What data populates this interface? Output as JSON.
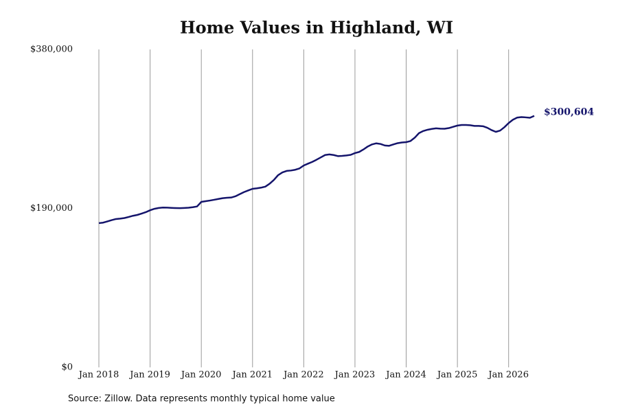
{
  "chart_data": {
    "type": "line",
    "title": "Home Values in Highland, WI",
    "source": "Source: Zillow. Data represents monthly typical home value",
    "x": [
      "2018-01",
      "2018-02",
      "2018-03",
      "2018-04",
      "2018-05",
      "2018-06",
      "2018-07",
      "2018-08",
      "2018-09",
      "2018-10",
      "2018-11",
      "2018-12",
      "2019-01",
      "2019-02",
      "2019-03",
      "2019-04",
      "2019-05",
      "2019-06",
      "2019-07",
      "2019-08",
      "2019-09",
      "2019-10",
      "2019-11",
      "2019-12",
      "2020-01",
      "2020-02",
      "2020-03",
      "2020-04",
      "2020-05",
      "2020-06",
      "2020-07",
      "2020-08",
      "2020-09",
      "2020-10",
      "2020-11",
      "2020-12",
      "2021-01",
      "2021-02",
      "2021-03",
      "2021-04",
      "2021-05",
      "2021-06",
      "2021-07",
      "2021-08",
      "2021-09",
      "2021-10",
      "2021-11",
      "2021-12",
      "2022-01",
      "2022-02",
      "2022-03",
      "2022-04",
      "2022-05",
      "2022-06",
      "2022-07",
      "2022-08",
      "2022-09",
      "2022-10",
      "2022-11",
      "2022-12",
      "2023-01",
      "2023-02",
      "2023-03",
      "2023-04",
      "2023-05",
      "2023-06",
      "2023-07",
      "2023-08",
      "2023-09",
      "2023-10",
      "2023-11",
      "2023-12",
      "2024-01",
      "2024-02",
      "2024-03",
      "2024-04",
      "2024-05",
      "2024-06",
      "2024-07",
      "2024-08",
      "2024-09",
      "2024-10",
      "2024-11",
      "2024-12",
      "2025-01",
      "2025-02",
      "2025-03",
      "2025-04",
      "2025-05",
      "2025-06",
      "2025-07",
      "2025-08",
      "2025-09",
      "2025-10",
      "2025-11",
      "2025-12",
      "2026-01",
      "2026-02",
      "2026-03",
      "2026-04",
      "2026-05",
      "2026-06",
      "2026-07"
    ],
    "series": [
      {
        "name": "Home value",
        "color": "#14146b",
        "values": [
          172400,
          173000,
          174500,
          176000,
          177300,
          177800,
          178500,
          179800,
          181200,
          182200,
          183800,
          185500,
          187800,
          189500,
          190500,
          191000,
          190900,
          190600,
          190400,
          190300,
          190500,
          190800,
          191400,
          192300,
          197800,
          198600,
          199400,
          200300,
          201300,
          202200,
          202700,
          203000,
          204500,
          207000,
          209500,
          211500,
          213400,
          214000,
          214800,
          216000,
          219500,
          224000,
          229800,
          233000,
          234800,
          235300,
          236200,
          237800,
          241300,
          243500,
          245600,
          248200,
          251000,
          253800,
          254500,
          253800,
          252500,
          252800,
          253300,
          254000,
          256100,
          257500,
          260500,
          264000,
          266500,
          267800,
          267000,
          265200,
          264800,
          266500,
          268000,
          268800,
          269200,
          270500,
          274500,
          280000,
          282500,
          284000,
          285000,
          285700,
          285300,
          285200,
          286000,
          287500,
          289000,
          289700,
          289700,
          289400,
          288600,
          288600,
          288200,
          286400,
          283600,
          281500,
          283000,
          287000,
          292000,
          296000,
          298500,
          299200,
          298800,
          298300,
          300604
        ],
        "value_labels": [
          null,
          null,
          null,
          null,
          null,
          null,
          null,
          null,
          null,
          null,
          null,
          null,
          null,
          null,
          null,
          null,
          null,
          null,
          null,
          null,
          null,
          null,
          null,
          null,
          null,
          null,
          null,
          null,
          null,
          null,
          null,
          null,
          null,
          null,
          null,
          null,
          null,
          null,
          null,
          null,
          null,
          null,
          null,
          null,
          null,
          null,
          null,
          null,
          null,
          null,
          null,
          null,
          null,
          null,
          null,
          null,
          null,
          null,
          null,
          null,
          null,
          null,
          null,
          null,
          null,
          null,
          null,
          null,
          null,
          null,
          null,
          null,
          null,
          null,
          null,
          null,
          null,
          null,
          null,
          null,
          null,
          null,
          null,
          null,
          null,
          null,
          null,
          null,
          null,
          null,
          null,
          null,
          null,
          null,
          null,
          null,
          null,
          null,
          null,
          null,
          null,
          null,
          "$300,604"
        ]
      }
    ],
    "xlim": [
      "2018-01",
      "2026-07"
    ],
    "xticks": [
      {
        "value": "2018-01",
        "label": "Jan 2018"
      },
      {
        "value": "2019-01",
        "label": "Jan 2019"
      },
      {
        "value": "2020-01",
        "label": "Jan 2020"
      },
      {
        "value": "2021-01",
        "label": "Jan 2021"
      },
      {
        "value": "2022-01",
        "label": "Jan 2022"
      },
      {
        "value": "2023-01",
        "label": "Jan 2023"
      },
      {
        "value": "2024-01",
        "label": "Jan 2024"
      },
      {
        "value": "2025-01",
        "label": "Jan 2025"
      },
      {
        "value": "2026-01",
        "label": "Jan 2026"
      }
    ],
    "ylim": [
      0,
      380000
    ],
    "yticks": [
      {
        "value": 0,
        "label": "$0"
      },
      {
        "value": 190000,
        "label": "$190,000"
      },
      {
        "value": 380000,
        "label": "$380,000"
      }
    ],
    "grid": "x"
  }
}
